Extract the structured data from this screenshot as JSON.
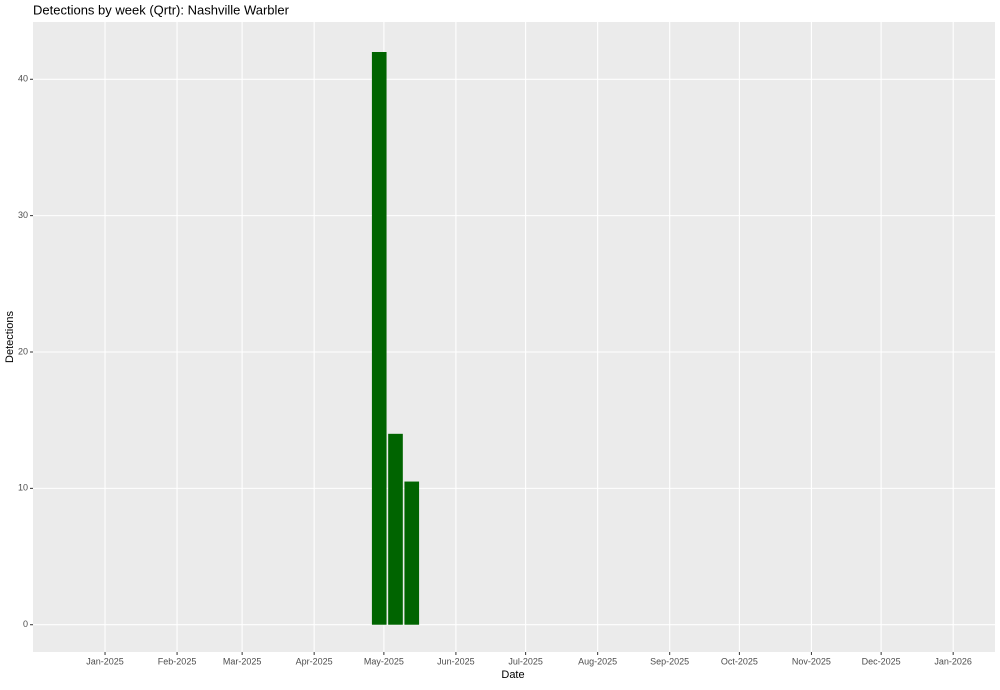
{
  "chart_data": {
    "type": "bar",
    "title": "Detections by week (Qrtr): Nashville Warbler",
    "x_label": "Date",
    "y_label": "Detections",
    "x": [
      "2025-04-29",
      "2025-05-06",
      "2025-05-13"
    ],
    "values": [
      42,
      14,
      10.5
    ],
    "color": "#006400",
    "xlim": [
      "2024-12-01",
      "2026-01-19"
    ],
    "xticks": [
      {
        "value": "2025-01",
        "label": "Jan-2025"
      },
      {
        "value": "2025-02",
        "label": "Feb-2025"
      },
      {
        "value": "2025-03",
        "label": "Mar-2025"
      },
      {
        "value": "2025-04",
        "label": "Apr-2025"
      },
      {
        "value": "2025-05",
        "label": "May-2025"
      },
      {
        "value": "2025-06",
        "label": "Jun-2025"
      },
      {
        "value": "2025-07",
        "label": "Jul-2025"
      },
      {
        "value": "2025-08",
        "label": "Aug-2025"
      },
      {
        "value": "2025-09",
        "label": "Sep-2025"
      },
      {
        "value": "2025-10",
        "label": "Oct-2025"
      },
      {
        "value": "2025-11",
        "label": "Nov-2025"
      },
      {
        "value": "2025-12",
        "label": "Dec-2025"
      },
      {
        "value": "2026-01",
        "label": "Jan-2026"
      }
    ],
    "ylim": [
      -2,
      44.2
    ],
    "yticks": [
      0,
      10,
      20,
      30,
      40
    ],
    "grid": true
  }
}
